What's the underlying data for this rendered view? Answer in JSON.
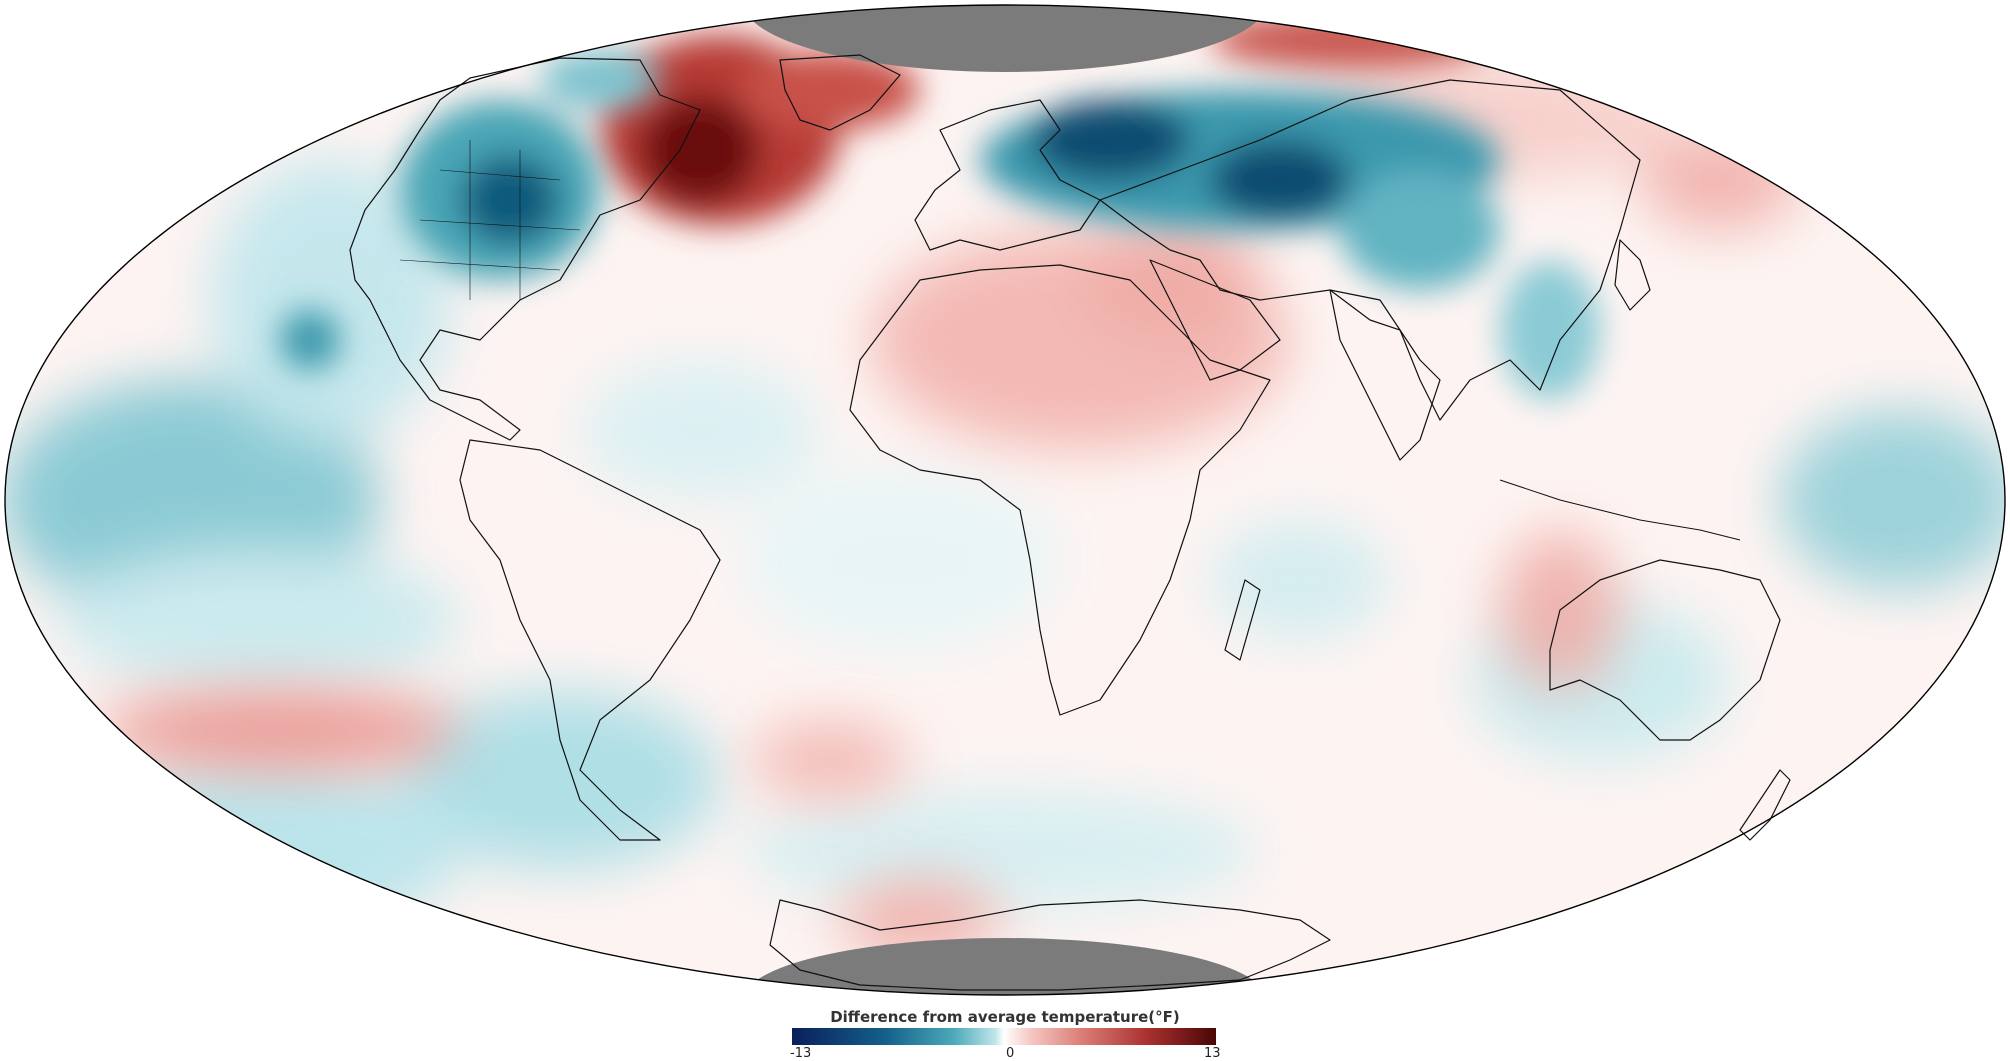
{
  "legend": {
    "title": "Difference from average temperature(°F)",
    "min": "-13",
    "mid": "0",
    "max": "13"
  },
  "colors": {
    "ocean_base": "#fdf3f1",
    "strong_cold": "#0d4f74",
    "cold": "#3a9db2",
    "cool": "#bfe7ec",
    "warm": "#f2b4ae",
    "hot": "#c8504a",
    "very_hot": "#7a1414",
    "no_data": "#7a7a7a",
    "coastline": "#111111"
  }
}
